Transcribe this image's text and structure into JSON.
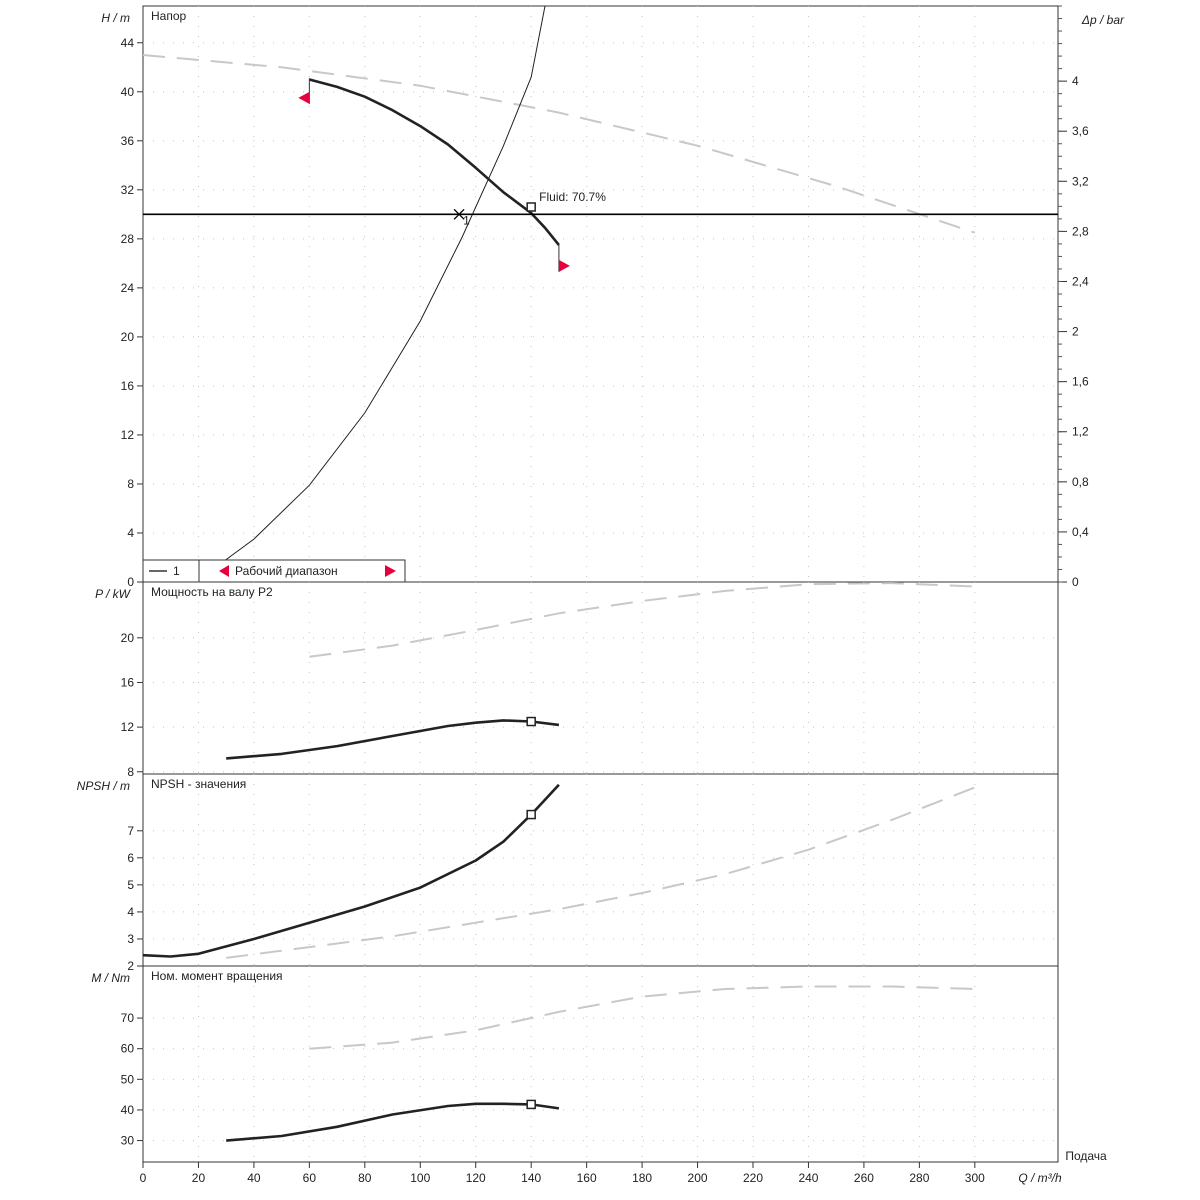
{
  "chart_data": {
    "type": "line",
    "x_axis": {
      "label": "Q / m³/h",
      "caption": "Подача",
      "range": [
        0,
        330
      ],
      "ticks": [
        0,
        20,
        40,
        60,
        80,
        100,
        120,
        140,
        160,
        180,
        200,
        220,
        240,
        260,
        280,
        300
      ]
    },
    "grid": true,
    "panels": [
      {
        "title": "Напор",
        "ylabel": "H / m",
        "ylim": [
          0,
          47
        ],
        "yticks": [
          0,
          4,
          8,
          12,
          16,
          20,
          24,
          28,
          32,
          36,
          40,
          44
        ],
        "right_axis": {
          "label": "Δp / bar",
          "ylim": [
            0,
            4.6
          ],
          "ticks": [
            0,
            0.4,
            0.8,
            1.2,
            1.6,
            2,
            2.4,
            2.8,
            3.2,
            3.6,
            4
          ],
          "tick_labels": [
            "0",
            "0,4",
            "0,8",
            "1,2",
            "1,6",
            "2",
            "2,4",
            "2,8",
            "3,2",
            "3,6",
            "4"
          ]
        },
        "series": [
          {
            "role": "operating",
            "color": "#222222",
            "x": [
              60,
              70,
              80,
              90,
              100,
              110,
              120,
              130,
              140,
              145,
              150
            ],
            "y": [
              41,
              40.4,
              39.6,
              38.5,
              37.2,
              35.7,
              33.8,
              31.8,
              30.1,
              28.9,
              27.5
            ]
          },
          {
            "role": "maximum",
            "color": "#c8c8c8",
            "x": [
              0,
              50,
              100,
              150,
              200,
              250,
              300
            ],
            "y": [
              43,
              42,
              40.5,
              38.3,
              35.6,
              32.3,
              28.5
            ]
          },
          {
            "role": "system",
            "color": "#222222",
            "x": [
              28,
              40,
              60,
              80,
              100,
              115,
              130,
              140,
              145
            ],
            "y": [
              1.5,
              3.5,
              7.9,
              13.8,
              21.3,
              28.1,
              35.6,
              41.2,
              47
            ]
          }
        ],
        "horizontal_line": {
          "y": 30,
          "color": "#000000"
        },
        "operating_point": {
          "x": 114,
          "y": 30,
          "label": "1"
        },
        "marker": {
          "x": 140,
          "y": 30.6,
          "label": "Fluid: 70.7%"
        },
        "flags": [
          {
            "x": 60,
            "y": 39.5,
            "direction": "left",
            "color": "#e8003c"
          },
          {
            "x": 150,
            "y": 25.8,
            "direction": "right",
            "color": "#e8003c"
          }
        ],
        "legend": {
          "placement": "bottom-left",
          "items": [
            "1",
            "Рабочий диапазон"
          ]
        }
      },
      {
        "title": "Мощность на валу P2",
        "ylabel": "P / kW",
        "ylim": [
          7.8,
          25
        ],
        "yticks": [
          8,
          12,
          16,
          20
        ],
        "series": [
          {
            "role": "operating",
            "color": "#222222",
            "x": [
              30,
              50,
              70,
              90,
              110,
              120,
              130,
              140,
              150
            ],
            "y": [
              9.2,
              9.6,
              10.3,
              11.2,
              12.1,
              12.4,
              12.6,
              12.5,
              12.2
            ]
          },
          {
            "role": "maximum",
            "color": "#c8c8c8",
            "x": [
              60,
              90,
              120,
              150,
              180,
              210,
              240,
              270,
              300
            ],
            "y": [
              18.3,
              19.3,
              20.7,
              22.2,
              23.3,
              24.2,
              24.8,
              24.9,
              24.6
            ]
          }
        ],
        "marker": {
          "x": 140,
          "y": 12.5
        }
      },
      {
        "title": "NPSH - значения",
        "ylabel": "NPSH / m",
        "ylim": [
          2,
          9.1
        ],
        "yticks": [
          2,
          3,
          4,
          5,
          6,
          7
        ],
        "series": [
          {
            "role": "operating",
            "color": "#222222",
            "x": [
              0,
              10,
              20,
              40,
              60,
              80,
              100,
              120,
              130,
              140,
              150
            ],
            "y": [
              2.4,
              2.35,
              2.45,
              3,
              3.6,
              4.2,
              4.9,
              5.9,
              6.6,
              7.6,
              8.7
            ]
          },
          {
            "role": "maximum",
            "color": "#c8c8c8",
            "x": [
              30,
              60,
              90,
              120,
              150,
              180,
              210,
              240,
              270,
              300
            ],
            "y": [
              2.3,
              2.7,
              3.1,
              3.6,
              4.1,
              4.7,
              5.4,
              6.3,
              7.4,
              8.6
            ]
          }
        ],
        "marker": {
          "x": 140,
          "y": 7.6
        }
      },
      {
        "title": "Ном. момент вращения",
        "ylabel": "M / Nm",
        "ylim": [
          23,
          87
        ],
        "yticks": [
          30,
          40,
          50,
          60,
          70
        ],
        "series": [
          {
            "role": "operating",
            "color": "#222222",
            "x": [
              30,
              50,
              70,
              90,
              110,
              120,
              130,
              140,
              150
            ],
            "y": [
              30,
              31.5,
              34.5,
              38.5,
              41.3,
              42,
              42,
              41.8,
              40.5
            ]
          },
          {
            "role": "maximum",
            "color": "#c8c8c8",
            "x": [
              60,
              90,
              120,
              150,
              180,
              210,
              240,
              270,
              300
            ],
            "y": [
              60,
              62,
              66,
              72,
              77,
              79.5,
              80.3,
              80.3,
              79.5
            ]
          }
        ],
        "marker": {
          "x": 140,
          "y": 41.8
        }
      }
    ]
  }
}
